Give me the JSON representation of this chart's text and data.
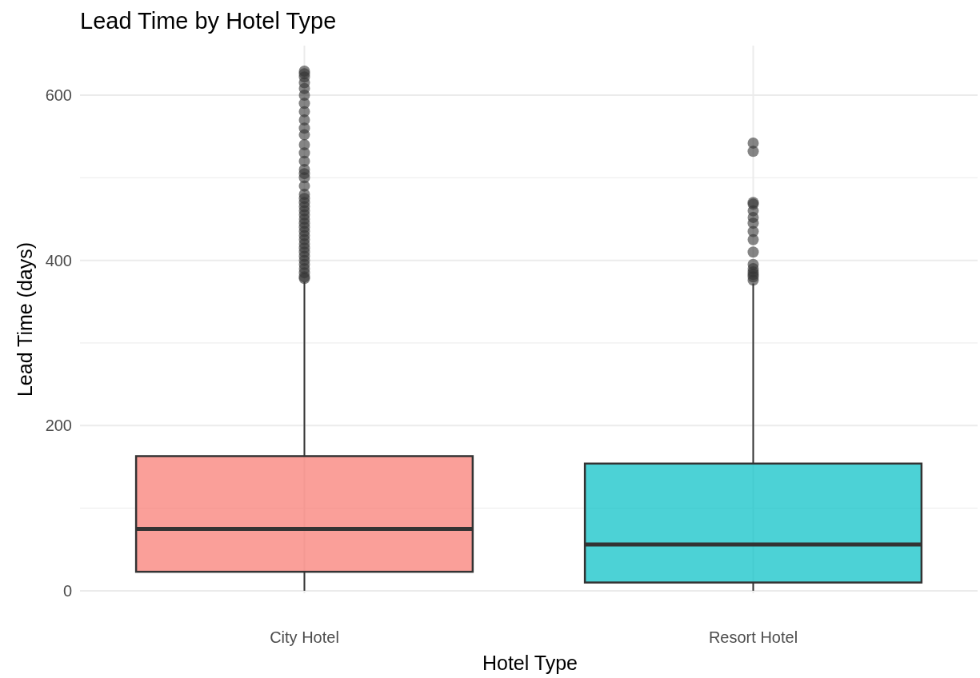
{
  "chart_data": {
    "type": "box",
    "title": "Lead Time by Hotel Type",
    "xlabel": "Hotel Type",
    "ylabel": "Lead Time (days)",
    "categories": [
      "City Hotel",
      "Resort Hotel"
    ],
    "colors": [
      "#f8766d",
      "#00bfc4"
    ],
    "boxes": [
      {
        "low": 0,
        "q1": 23,
        "median": 75,
        "q3": 163,
        "high": 374,
        "outliers": [
          378,
          380,
          385,
          390,
          395,
          400,
          405,
          410,
          415,
          420,
          425,
          430,
          435,
          440,
          445,
          450,
          455,
          460,
          465,
          470,
          475,
          480,
          490,
          500,
          505,
          510,
          520,
          530,
          540,
          552,
          560,
          570,
          580,
          590,
          600,
          608,
          615,
          622,
          626,
          629
        ]
      },
      {
        "low": 0,
        "q1": 10,
        "median": 56,
        "q3": 154,
        "high": 372,
        "outliers": [
          376,
          380,
          383,
          386,
          390,
          395,
          410,
          425,
          435,
          445,
          452,
          460,
          468,
          470,
          532,
          542
        ]
      }
    ],
    "ylim": [
      -3,
      660
    ],
    "yticks": [
      0,
      200,
      400,
      600
    ],
    "grid": true
  }
}
